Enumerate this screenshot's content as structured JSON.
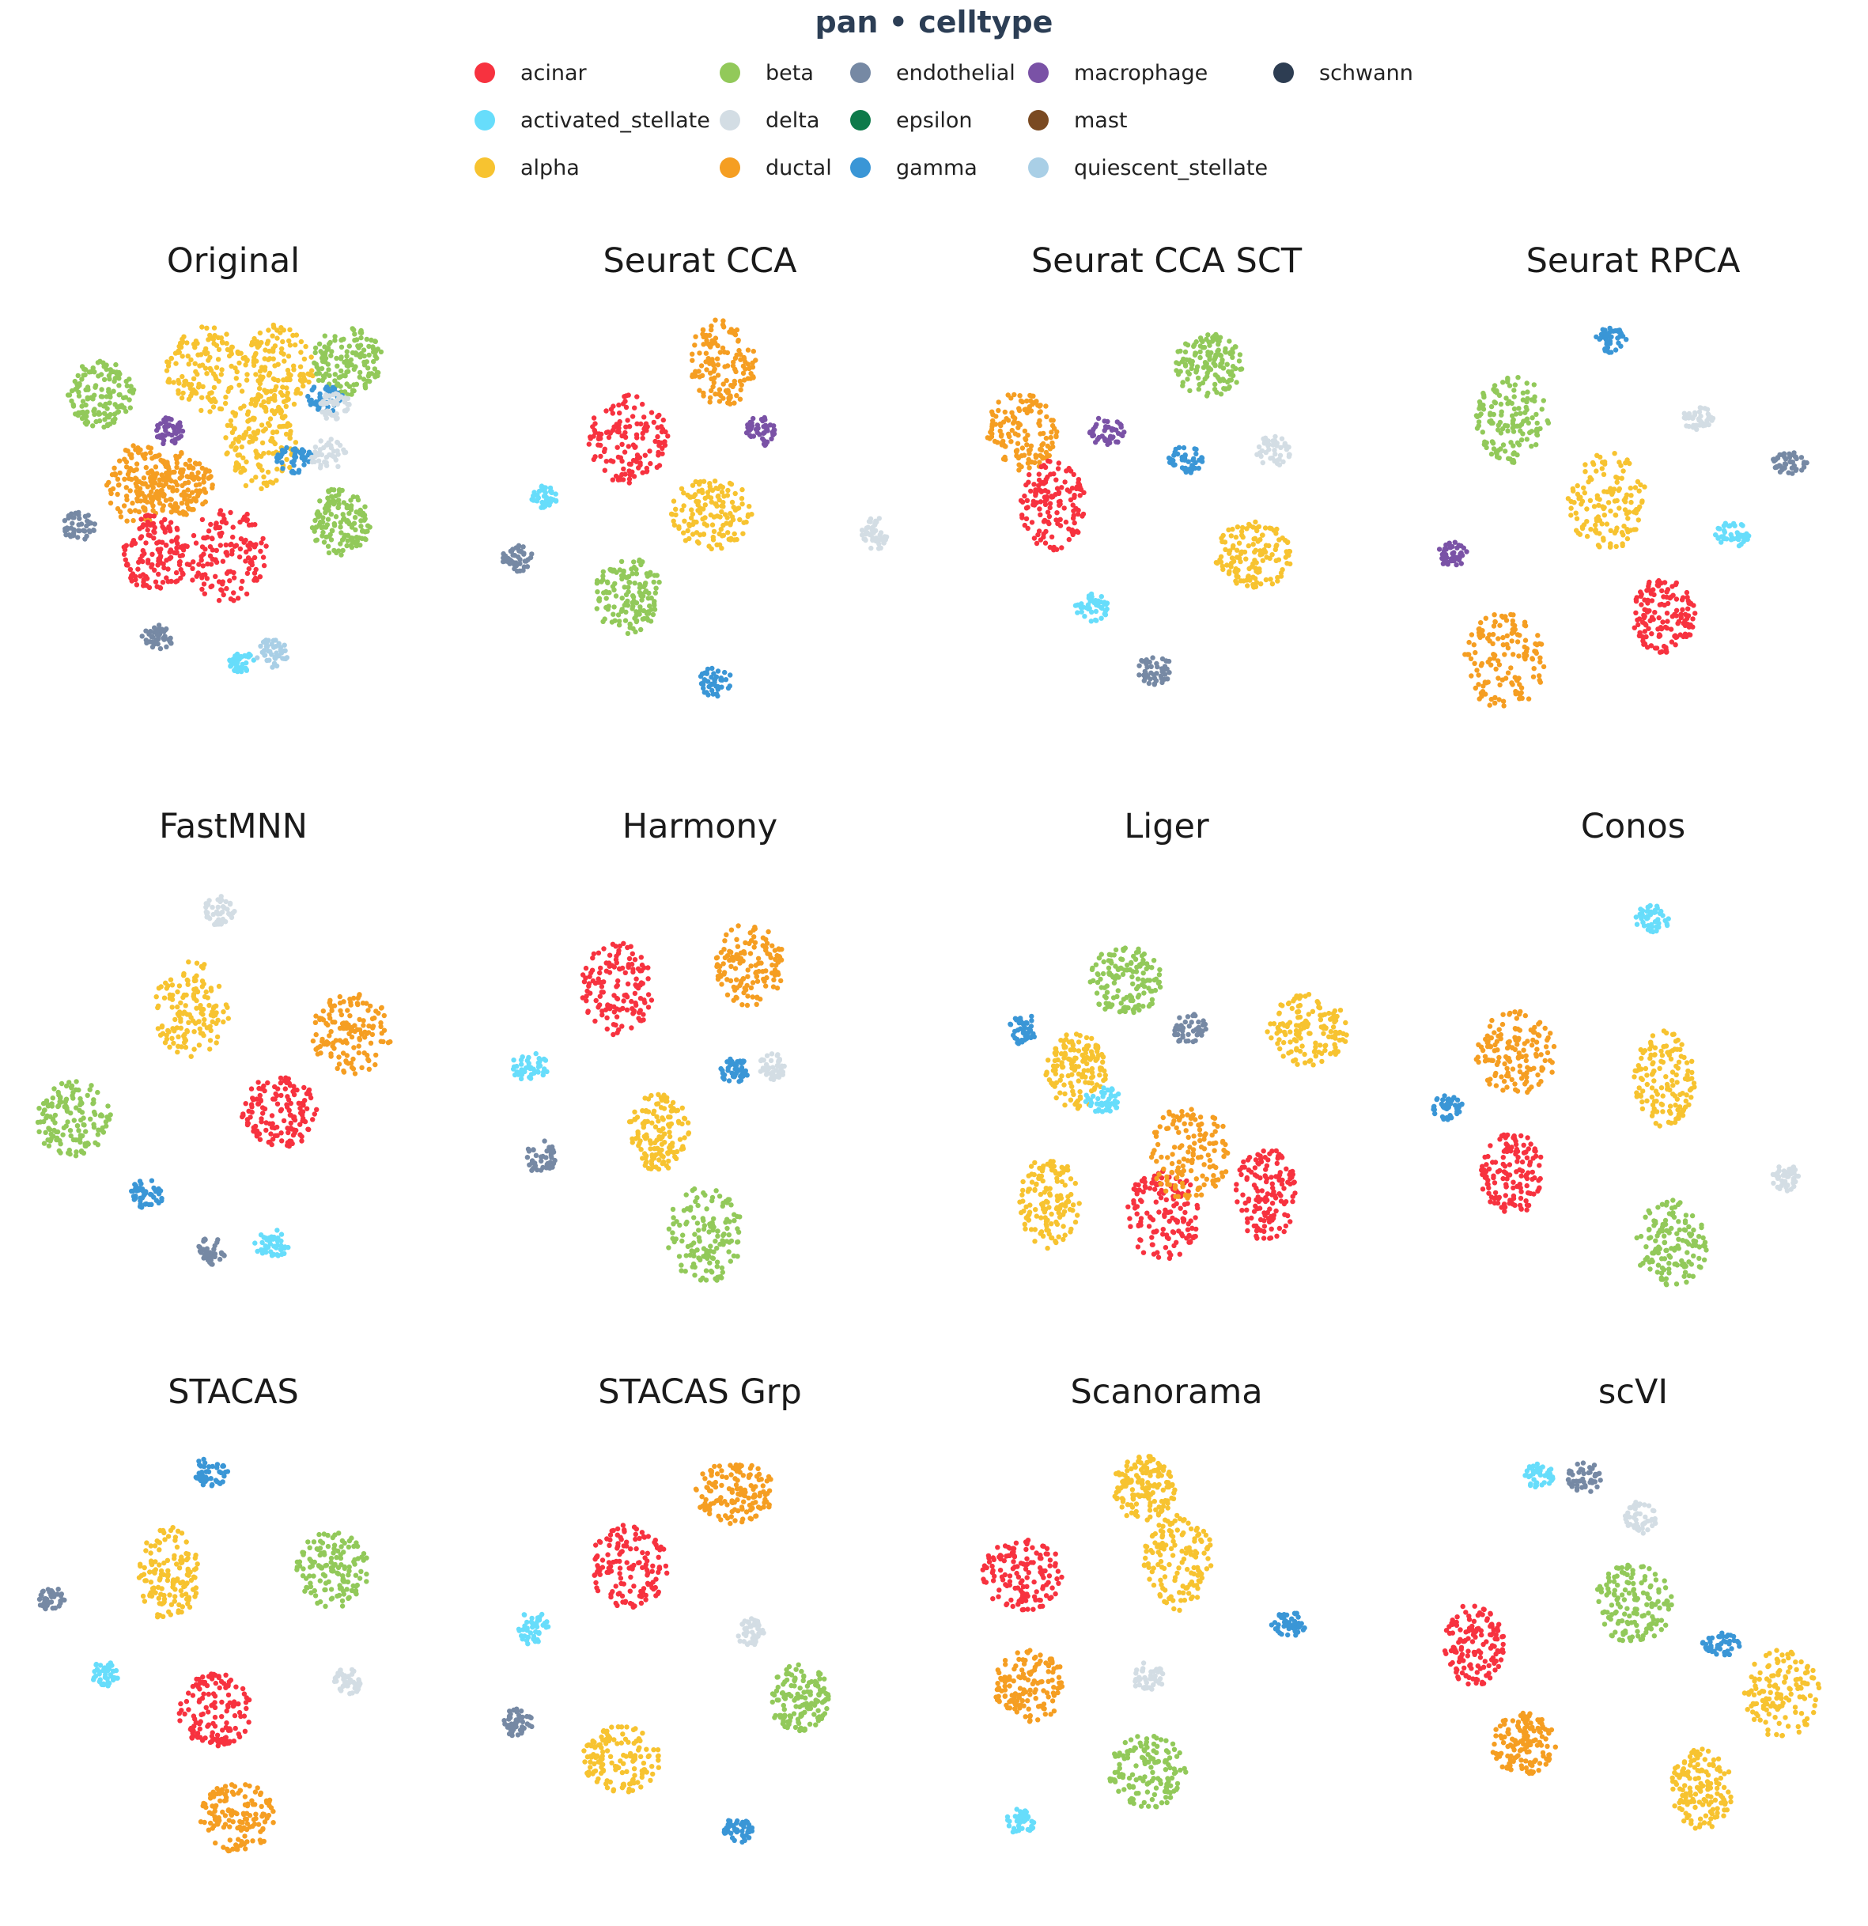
{
  "title": "pan • celltype",
  "legend": [
    {
      "label": "acinar",
      "color": "#f7323f"
    },
    {
      "label": "activated_stellate",
      "color": "#67ddfb"
    },
    {
      "label": "alpha",
      "color": "#f7c330"
    },
    {
      "label": "beta",
      "color": "#92c95a"
    },
    {
      "label": "delta",
      "color": "#d3dde4"
    },
    {
      "label": "ductal",
      "color": "#f59e22"
    },
    {
      "label": "endothelial",
      "color": "#7689a4"
    },
    {
      "label": "epsilon",
      "color": "#0e7a4a"
    },
    {
      "label": "gamma",
      "color": "#3a96d6"
    },
    {
      "label": "macrophage",
      "color": "#7a52a6"
    },
    {
      "label": "mast",
      "color": "#7a4a22"
    },
    {
      "label": "quiescent_stellate",
      "color": "#a9cfe6"
    },
    {
      "label": "schwann",
      "color": "#2d3d52"
    }
  ],
  "chart_data": [
    {
      "type": "scatter",
      "title": "Original",
      "clusters": [
        {
          "c": "ductal",
          "x": 0.22,
          "y": 0.38
        },
        {
          "c": "ductal",
          "x": 0.33,
          "y": 0.38
        },
        {
          "c": "alpha",
          "x": 0.54,
          "y": 0.28
        },
        {
          "c": "alpha",
          "x": 0.4,
          "y": 0.1
        },
        {
          "c": "alpha",
          "x": 0.59,
          "y": 0.1
        },
        {
          "c": "gamma",
          "x": 0.63,
          "y": 0.32
        },
        {
          "c": "delta",
          "x": 0.72,
          "y": 0.31
        },
        {
          "c": "beta",
          "x": 0.77,
          "y": 0.08
        },
        {
          "c": "gamma",
          "x": 0.71,
          "y": 0.17
        },
        {
          "c": "delta",
          "x": 0.74,
          "y": 0.19
        },
        {
          "c": "beta",
          "x": 0.75,
          "y": 0.47
        },
        {
          "c": "acinar",
          "x": 0.26,
          "y": 0.55
        },
        {
          "c": "acinar",
          "x": 0.45,
          "y": 0.55
        },
        {
          "c": "endothelial",
          "x": 0.27,
          "y": 0.75
        },
        {
          "c": "activated_stellate",
          "x": 0.49,
          "y": 0.81
        },
        {
          "c": "quiescent_stellate",
          "x": 0.57,
          "y": 0.79
        },
        {
          "c": "beta",
          "x": 0.12,
          "y": 0.16
        },
        {
          "c": "macrophage",
          "x": 0.3,
          "y": 0.25
        },
        {
          "c": "endothelial",
          "x": 0.06,
          "y": 0.48
        }
      ]
    },
    {
      "type": "scatter",
      "title": "Seurat CCA",
      "clusters": [
        {
          "c": "ductal",
          "x": 0.53,
          "y": 0.08
        },
        {
          "c": "acinar",
          "x": 0.28,
          "y": 0.27
        },
        {
          "c": "alpha",
          "x": 0.5,
          "y": 0.45
        },
        {
          "c": "beta",
          "x": 0.28,
          "y": 0.65
        },
        {
          "c": "activated_stellate",
          "x": 0.06,
          "y": 0.41
        },
        {
          "c": "delta",
          "x": 0.93,
          "y": 0.5
        },
        {
          "c": "gamma",
          "x": 0.51,
          "y": 0.86
        },
        {
          "c": "endothelial",
          "x": -0.01,
          "y": 0.56
        },
        {
          "c": "macrophage",
          "x": 0.63,
          "y": 0.25
        }
      ]
    },
    {
      "type": "scatter",
      "title": "Seurat CCA SCT",
      "clusters": [
        {
          "c": "beta",
          "x": 0.58,
          "y": 0.09
        },
        {
          "c": "ductal",
          "x": 0.09,
          "y": 0.25
        },
        {
          "c": "acinar",
          "x": 0.17,
          "y": 0.43
        },
        {
          "c": "alpha",
          "x": 0.7,
          "y": 0.55
        },
        {
          "c": "gamma",
          "x": 0.52,
          "y": 0.32
        },
        {
          "c": "delta",
          "x": 0.75,
          "y": 0.3
        },
        {
          "c": "activated_stellate",
          "x": 0.27,
          "y": 0.68
        },
        {
          "c": "endothelial",
          "x": 0.44,
          "y": 0.83
        },
        {
          "c": "macrophage",
          "x": 0.31,
          "y": 0.25
        }
      ]
    },
    {
      "type": "scatter",
      "title": "Seurat RPCA",
      "clusters": [
        {
          "c": "gamma",
          "x": 0.41,
          "y": 0.03
        },
        {
          "c": "beta",
          "x": 0.15,
          "y": 0.22
        },
        {
          "c": "delta",
          "x": 0.64,
          "y": 0.22
        },
        {
          "c": "alpha",
          "x": 0.4,
          "y": 0.42
        },
        {
          "c": "activated_stellate",
          "x": 0.73,
          "y": 0.5
        },
        {
          "c": "acinar",
          "x": 0.55,
          "y": 0.7
        },
        {
          "c": "ductal",
          "x": 0.13,
          "y": 0.81
        },
        {
          "c": "endothelial",
          "x": 0.88,
          "y": 0.33
        },
        {
          "c": "macrophage",
          "x": -0.01,
          "y": 0.55
        }
      ]
    },
    {
      "type": "scatter",
      "title": "FastMNN",
      "clusters": [
        {
          "c": "delta",
          "x": 0.43,
          "y": 0.04
        },
        {
          "c": "alpha",
          "x": 0.36,
          "y": 0.28
        },
        {
          "c": "ductal",
          "x": 0.78,
          "y": 0.34
        },
        {
          "c": "acinar",
          "x": 0.59,
          "y": 0.53
        },
        {
          "c": "beta",
          "x": 0.05,
          "y": 0.55
        },
        {
          "c": "gamma",
          "x": 0.24,
          "y": 0.73
        },
        {
          "c": "activated_stellate",
          "x": 0.57,
          "y": 0.85
        },
        {
          "c": "endothelial",
          "x": 0.41,
          "y": 0.87
        }
      ]
    },
    {
      "type": "scatter",
      "title": "Harmony",
      "clusters": [
        {
          "c": "acinar",
          "x": 0.25,
          "y": 0.23
        },
        {
          "c": "ductal",
          "x": 0.6,
          "y": 0.17
        },
        {
          "c": "alpha",
          "x": 0.36,
          "y": 0.58
        },
        {
          "c": "delta",
          "x": 0.66,
          "y": 0.42
        },
        {
          "c": "gamma",
          "x": 0.56,
          "y": 0.43
        },
        {
          "c": "beta",
          "x": 0.48,
          "y": 0.83
        },
        {
          "c": "activated_stellate",
          "x": 0.02,
          "y": 0.42
        },
        {
          "c": "endothelial",
          "x": 0.05,
          "y": 0.64
        }
      ]
    },
    {
      "type": "scatter",
      "title": "Liger",
      "clusters": [
        {
          "c": "beta",
          "x": 0.36,
          "y": 0.21
        },
        {
          "c": "alpha",
          "x": 0.23,
          "y": 0.43
        },
        {
          "c": "gamma",
          "x": 0.09,
          "y": 0.33
        },
        {
          "c": "acinar",
          "x": 0.46,
          "y": 0.78
        },
        {
          "c": "ductal",
          "x": 0.53,
          "y": 0.63
        },
        {
          "c": "alpha",
          "x": 0.84,
          "y": 0.33
        },
        {
          "c": "alpha",
          "x": 0.16,
          "y": 0.75
        },
        {
          "c": "acinar",
          "x": 0.73,
          "y": 0.73
        },
        {
          "c": "activated_stellate",
          "x": 0.3,
          "y": 0.5
        },
        {
          "c": "endothelial",
          "x": 0.53,
          "y": 0.33
        }
      ]
    },
    {
      "type": "scatter",
      "title": "Conos",
      "clusters": [
        {
          "c": "activated_stellate",
          "x": 0.52,
          "y": 0.06
        },
        {
          "c": "ductal",
          "x": 0.16,
          "y": 0.39
        },
        {
          "c": "alpha",
          "x": 0.55,
          "y": 0.45
        },
        {
          "c": "acinar",
          "x": 0.15,
          "y": 0.68
        },
        {
          "c": "beta",
          "x": 0.57,
          "y": 0.85
        },
        {
          "c": "gamma",
          "x": -0.02,
          "y": 0.52
        },
        {
          "c": "delta",
          "x": 0.87,
          "y": 0.69
        }
      ]
    },
    {
      "type": "scatter",
      "title": "STACAS",
      "clusters": [
        {
          "c": "gamma",
          "x": 0.41,
          "y": 0.03
        },
        {
          "c": "alpha",
          "x": 0.3,
          "y": 0.28
        },
        {
          "c": "beta",
          "x": 0.73,
          "y": 0.27
        },
        {
          "c": "acinar",
          "x": 0.42,
          "y": 0.61
        },
        {
          "c": "delta",
          "x": 0.77,
          "y": 0.54
        },
        {
          "c": "ductal",
          "x": 0.48,
          "y": 0.87
        },
        {
          "c": "activated_stellate",
          "x": 0.13,
          "y": 0.52
        },
        {
          "c": "endothelial",
          "x": -0.01,
          "y": 0.34
        }
      ]
    },
    {
      "type": "scatter",
      "title": "STACAS Grp",
      "clusters": [
        {
          "c": "ductal",
          "x": 0.56,
          "y": 0.08
        },
        {
          "c": "acinar",
          "x": 0.28,
          "y": 0.26
        },
        {
          "c": "delta",
          "x": 0.6,
          "y": 0.42
        },
        {
          "c": "beta",
          "x": 0.73,
          "y": 0.58
        },
        {
          "c": "alpha",
          "x": 0.26,
          "y": 0.73
        },
        {
          "c": "activated_stellate",
          "x": 0.03,
          "y": 0.41
        },
        {
          "c": "gamma",
          "x": 0.57,
          "y": 0.9
        },
        {
          "c": "endothelial",
          "x": -0.01,
          "y": 0.64
        }
      ]
    },
    {
      "type": "scatter",
      "title": "Scanorama",
      "clusters": [
        {
          "c": "acinar",
          "x": 0.09,
          "y": 0.28
        },
        {
          "c": "ductal",
          "x": 0.11,
          "y": 0.55
        },
        {
          "c": "alpha",
          "x": 0.5,
          "y": 0.25
        },
        {
          "c": "alpha",
          "x": 0.41,
          "y": 0.07
        },
        {
          "c": "beta",
          "x": 0.42,
          "y": 0.76
        },
        {
          "c": "delta",
          "x": 0.42,
          "y": 0.53
        },
        {
          "c": "gamma",
          "x": 0.79,
          "y": 0.4
        },
        {
          "c": "activated_stellate",
          "x": 0.08,
          "y": 0.88
        }
      ]
    },
    {
      "type": "scatter",
      "title": "scVI",
      "clusters": [
        {
          "c": "acinar",
          "x": 0.05,
          "y": 0.45
        },
        {
          "c": "ductal",
          "x": 0.18,
          "y": 0.69
        },
        {
          "c": "beta",
          "x": 0.47,
          "y": 0.35
        },
        {
          "c": "delta",
          "x": 0.49,
          "y": 0.14
        },
        {
          "c": "alpha",
          "x": 0.65,
          "y": 0.8
        },
        {
          "c": "alpha",
          "x": 0.86,
          "y": 0.57
        },
        {
          "c": "gamma",
          "x": 0.7,
          "y": 0.45
        },
        {
          "c": "activated_stellate",
          "x": 0.22,
          "y": 0.04
        },
        {
          "c": "endothelial",
          "x": 0.34,
          "y": 0.04
        }
      ]
    }
  ]
}
